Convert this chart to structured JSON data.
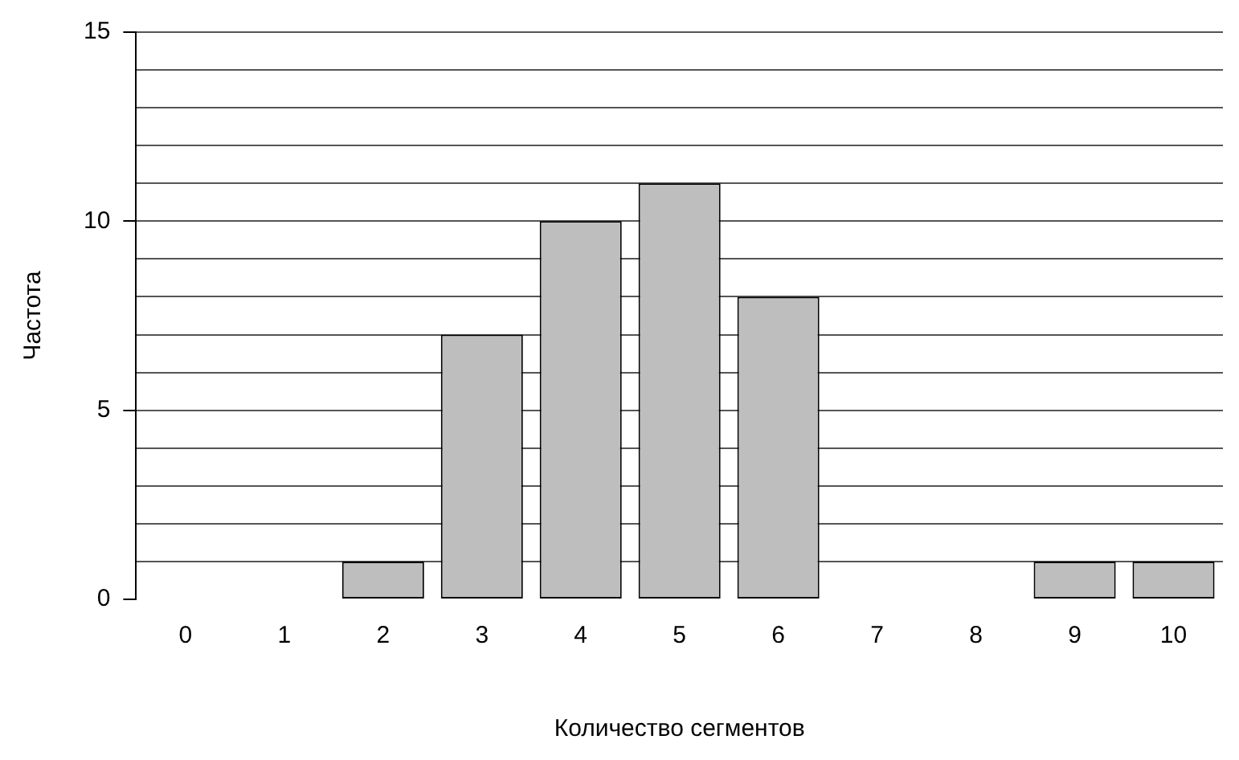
{
  "chart_data": {
    "type": "bar",
    "xlabel": "Количество сегментов",
    "ylabel": "Частота",
    "categories": [
      "0",
      "1",
      "2",
      "3",
      "4",
      "5",
      "6",
      "7",
      "8",
      "9",
      "10"
    ],
    "values": [
      0,
      0,
      1,
      7,
      10,
      11,
      8,
      0,
      0,
      1,
      1
    ],
    "color": "#bebebe",
    "ylim": [
      0,
      15
    ],
    "yticks": [
      0,
      {
        "value": 1,
        "label": null
      },
      {
        "value": 2,
        "label": null
      },
      {
        "value": 3,
        "label": null
      },
      {
        "value": 4,
        "label": null
      },
      5,
      {
        "value": 6,
        "label": null
      },
      {
        "value": 7,
        "label": null
      },
      {
        "value": 8,
        "label": null
      },
      {
        "value": 9,
        "label": null
      },
      10,
      {
        "value": 11,
        "label": null
      },
      {
        "value": 12,
        "label": null
      },
      {
        "value": 13,
        "label": null
      },
      {
        "value": 14,
        "label": null
      },
      15
    ],
    "grid": "y",
    "legend": false
  }
}
